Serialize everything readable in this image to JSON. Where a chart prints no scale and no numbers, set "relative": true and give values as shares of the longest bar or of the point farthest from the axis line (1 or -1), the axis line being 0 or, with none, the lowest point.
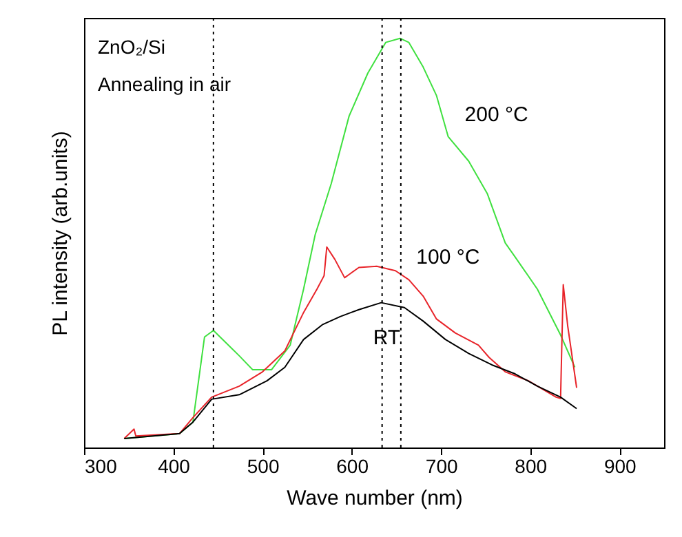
{
  "chart_data": {
    "type": "line",
    "relative": true,
    "xlabel": "Wave number (nm)",
    "ylabel": "PL intensity (arb.units)",
    "annotations": [
      "ZnO₂/Si",
      "Annealing in air"
    ],
    "xlim": [
      300,
      950
    ],
    "xticks": [
      300,
      400,
      500,
      600,
      700,
      800,
      900
    ],
    "grid": false,
    "line_style": "solid",
    "marker": "none",
    "series": [
      {
        "name": "200 °C",
        "color": "#3fe03f",
        "x": [
          345,
          407,
          422,
          435,
          445,
          474,
          489,
          510,
          531,
          546,
          559,
          577,
          597,
          618,
          638,
          654,
          664,
          680,
          695,
          708,
          731,
          752,
          772,
          783,
          808,
          834,
          850
        ],
        "values": [
          0.022,
          0.034,
          0.062,
          0.27,
          0.286,
          0.224,
          0.19,
          0.19,
          0.25,
          0.387,
          0.52,
          0.645,
          0.81,
          0.915,
          0.99,
          1.0,
          0.99,
          0.93,
          0.86,
          0.76,
          0.7,
          0.62,
          0.5,
          0.466,
          0.387,
          0.275,
          0.196
        ]
      },
      {
        "name": "100 °C",
        "color": "#e8242a",
        "x": [
          345,
          356,
          358,
          407,
          422,
          443,
          474,
          500,
          525,
          546,
          561,
          569,
          572,
          581,
          592,
          608,
          628,
          649,
          664,
          680,
          695,
          716,
          742,
          754,
          772,
          798,
          829,
          834,
          837,
          842,
          852
        ],
        "values": [
          0.022,
          0.045,
          0.028,
          0.034,
          0.073,
          0.123,
          0.15,
          0.185,
          0.236,
          0.33,
          0.387,
          0.42,
          0.49,
          0.46,
          0.415,
          0.44,
          0.443,
          0.432,
          0.41,
          0.37,
          0.314,
          0.28,
          0.25,
          0.22,
          0.185,
          0.163,
          0.123,
          0.12,
          0.398,
          0.297,
          0.146
        ]
      },
      {
        "name": "RT",
        "color": "#000000",
        "x": [
          345,
          407,
          422,
          443,
          474,
          505,
          525,
          546,
          567,
          587,
          608,
          633,
          659,
          680,
          705,
          731,
          757,
          783,
          808,
          834,
          852
        ],
        "values": [
          0.022,
          0.034,
          0.062,
          0.118,
          0.129,
          0.163,
          0.196,
          0.264,
          0.3,
          0.32,
          0.337,
          0.354,
          0.342,
          0.309,
          0.264,
          0.23,
          0.202,
          0.18,
          0.15,
          0.123,
          0.095
        ]
      }
    ],
    "ref_lines": [
      {
        "axis": "x",
        "value": 445,
        "color": "#000000",
        "line_style": "dotted"
      },
      {
        "axis": "x",
        "value": 634,
        "color": "#000000",
        "line_style": "dotted"
      },
      {
        "axis": "x",
        "value": 655,
        "color": "#000000",
        "line_style": "dotted"
      }
    ]
  }
}
